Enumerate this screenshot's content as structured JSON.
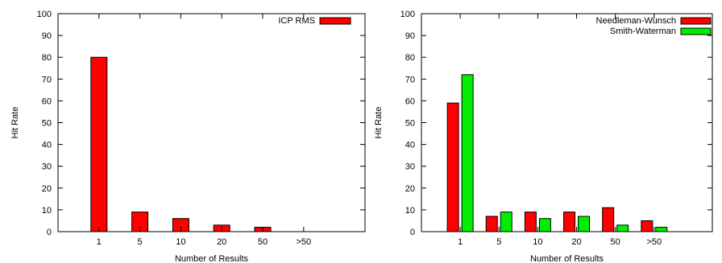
{
  "chart_data": [
    {
      "type": "bar",
      "categories": [
        "1",
        "5",
        "10",
        "20",
        "50",
        ">50"
      ],
      "series": [
        {
          "name": "ICP RMS",
          "values": [
            80,
            9,
            6,
            3,
            2,
            0
          ],
          "color": "#ff0000"
        }
      ],
      "xlabel": "Number of Results",
      "ylabel": "Hit Rate",
      "ylim": [
        0,
        100
      ],
      "yticks": [
        "0",
        "10",
        "20",
        "30",
        "40",
        "50",
        "60",
        "70",
        "80",
        "90",
        "100"
      ],
      "grid": false,
      "legend": "top-right"
    },
    {
      "type": "bar",
      "categories": [
        "1",
        "5",
        "10",
        "20",
        "50",
        ">50"
      ],
      "series": [
        {
          "name": "Needleman-Wunsch",
          "values": [
            59,
            7,
            9,
            9,
            11,
            5
          ],
          "color": "#ff0000"
        },
        {
          "name": "Smith-Waterman",
          "values": [
            72,
            9,
            6,
            7,
            3,
            2
          ],
          "color": "#00ee00"
        }
      ],
      "xlabel": "Number of Results",
      "ylabel": "Hit Rate",
      "ylim": [
        0,
        100
      ],
      "yticks": [
        "0",
        "10",
        "20",
        "30",
        "40",
        "50",
        "60",
        "70",
        "80",
        "90",
        "100"
      ],
      "grid": false,
      "legend": "top-right"
    }
  ]
}
